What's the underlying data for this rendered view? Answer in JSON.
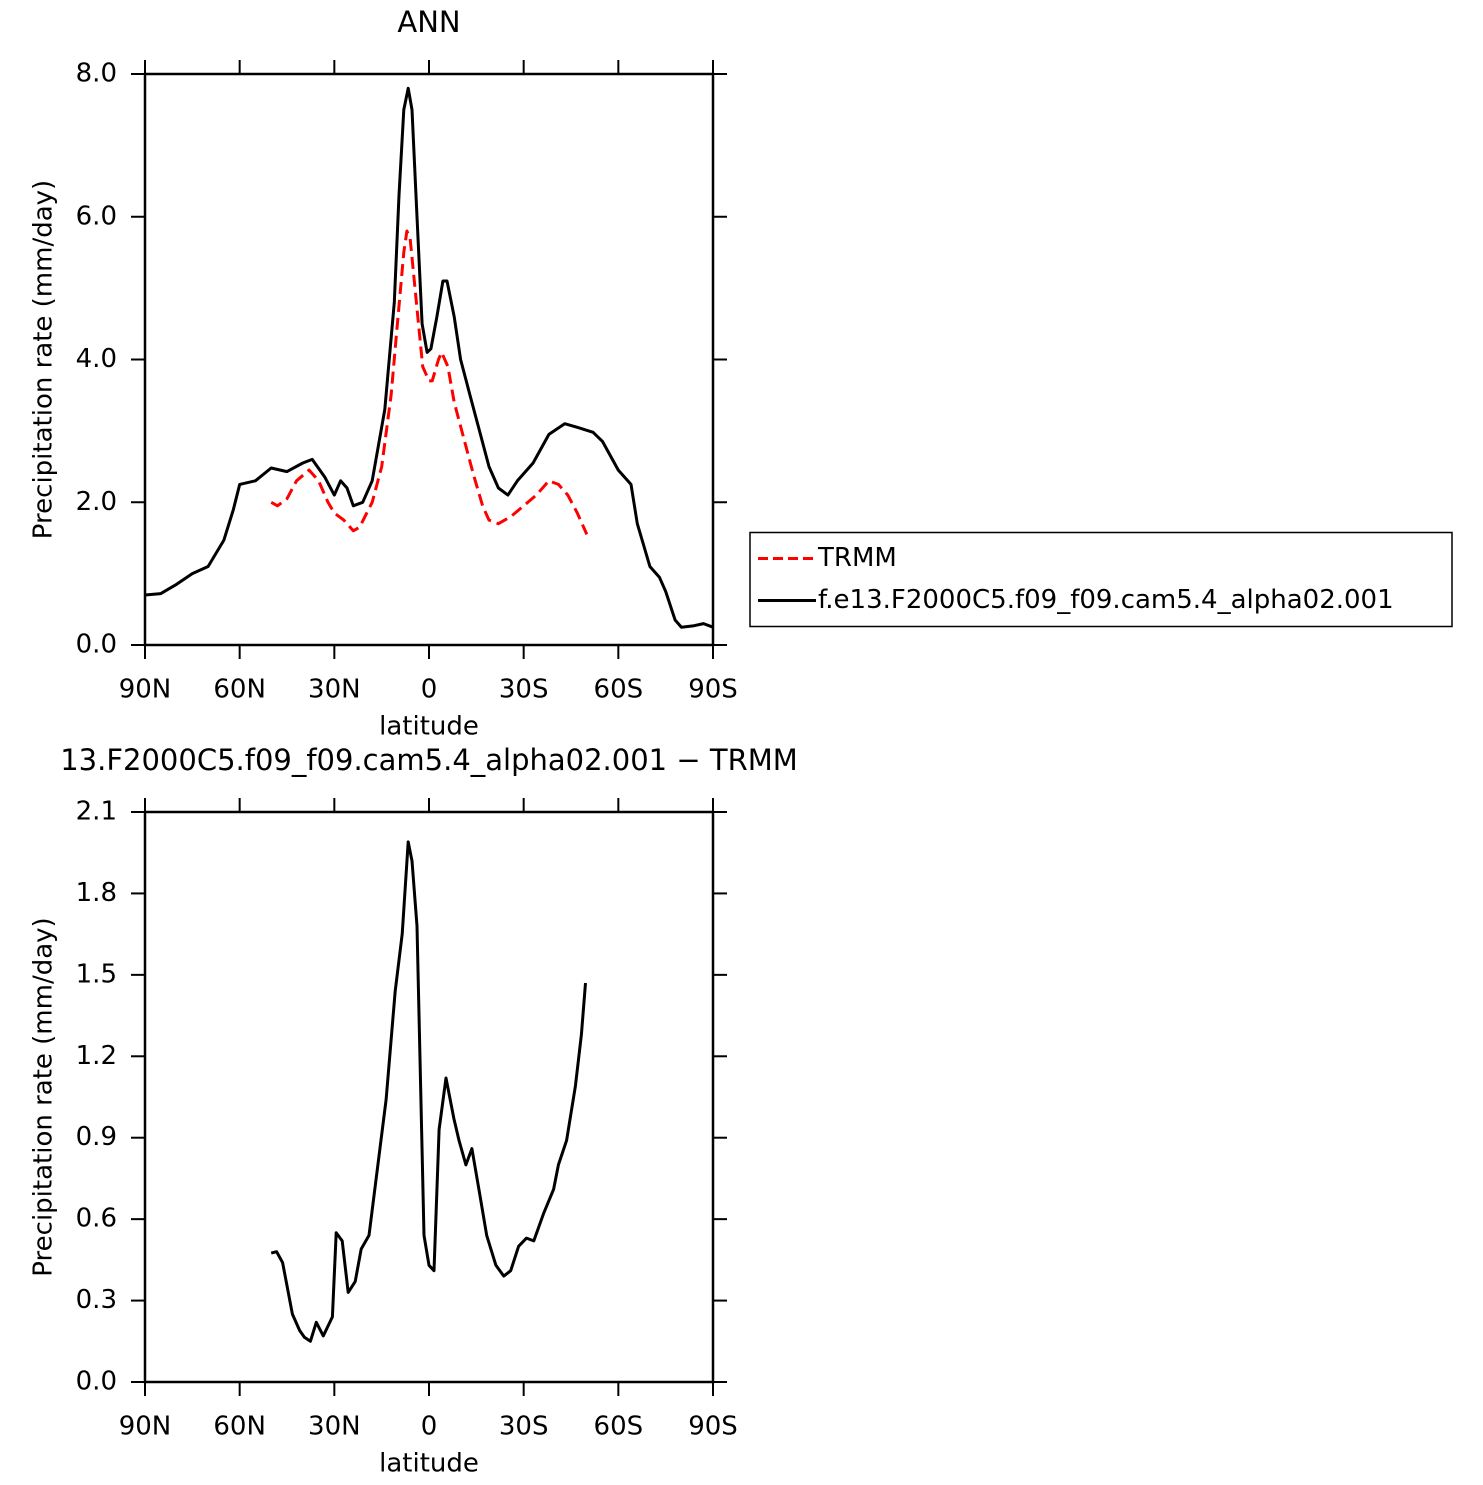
{
  "chart_data": [
    {
      "type": "line",
      "title": "ANN",
      "xlabel": "latitude",
      "ylabel": "Precipitation rate (mm/day)",
      "xlim": [
        90,
        -90
      ],
      "xticks": [
        {
          "value": 90,
          "label": "90N"
        },
        {
          "value": 60,
          "label": "60N"
        },
        {
          "value": 30,
          "label": "30N"
        },
        0,
        {
          "value": -30,
          "label": "30S"
        },
        {
          "value": -60,
          "label": "60S"
        },
        {
          "value": -90,
          "label": "90S"
        }
      ],
      "ylim": [
        0,
        8
      ],
      "yticks": [
        {
          "value": 0,
          "label": "0.0"
        },
        {
          "value": 2,
          "label": "2.0"
        },
        {
          "value": 4,
          "label": "4.0"
        },
        {
          "value": 6,
          "label": "6.0"
        },
        {
          "value": 8,
          "label": "8.0"
        }
      ],
      "legend": "right",
      "series": [
        {
          "name": "TRMM",
          "color": "#ff0000",
          "linestyle": "dashed",
          "x": [
            50,
            48,
            45,
            42,
            38,
            35,
            32,
            30,
            27,
            24,
            22,
            18,
            15,
            12,
            10,
            8,
            7,
            6,
            4,
            2,
            0,
            -1,
            -3,
            -4,
            -6,
            -8,
            -11,
            -14,
            -17,
            -19,
            -22,
            -26,
            -30,
            -34,
            -38,
            -41,
            -44,
            -47,
            -50
          ],
          "values": [
            2.0,
            1.95,
            2.05,
            2.3,
            2.45,
            2.3,
            2.0,
            1.85,
            1.75,
            1.6,
            1.65,
            2.0,
            2.5,
            3.5,
            4.5,
            5.5,
            5.8,
            5.7,
            4.8,
            3.9,
            3.7,
            3.7,
            4.0,
            4.1,
            3.9,
            3.4,
            2.9,
            2.4,
            1.95,
            1.75,
            1.7,
            1.8,
            1.95,
            2.1,
            2.3,
            2.25,
            2.1,
            1.85,
            1.55
          ]
        },
        {
          "name": "f.e13.F2000C5.f09_f09.cam5.4_alpha02.001",
          "color": "#000000",
          "linestyle": "solid",
          "x": [
            90,
            85,
            80,
            75,
            70,
            65,
            62,
            60,
            55,
            50,
            45,
            40,
            37,
            33,
            30,
            28,
            26,
            24,
            21,
            18,
            16,
            14,
            11,
            9.5,
            8,
            6.6,
            5.4,
            3.8,
            2.2,
            0.6,
            -0.6,
            -2.5,
            -4.4,
            -5.7,
            -8,
            -10,
            -13,
            -16,
            -19,
            -22,
            -25,
            -28,
            -33,
            -38,
            -43,
            -47,
            -52,
            -55,
            -60,
            -64,
            -66,
            -70,
            -73,
            -75,
            -78,
            -80,
            -84,
            -87,
            -90
          ],
          "values": [
            0.7,
            0.72,
            0.85,
            1.0,
            1.1,
            1.47,
            1.9,
            2.25,
            2.3,
            2.48,
            2.43,
            2.55,
            2.6,
            2.35,
            2.1,
            2.3,
            2.2,
            1.95,
            2.0,
            2.3,
            2.8,
            3.3,
            4.8,
            6.3,
            7.5,
            7.8,
            7.5,
            6.0,
            4.5,
            4.1,
            4.15,
            4.6,
            5.1,
            5.1,
            4.6,
            4.0,
            3.5,
            3.0,
            2.5,
            2.2,
            2.1,
            2.3,
            2.55,
            2.95,
            3.1,
            3.05,
            2.98,
            2.85,
            2.45,
            2.25,
            1.7,
            1.1,
            0.95,
            0.75,
            0.35,
            0.25,
            0.27,
            0.3,
            0.25
          ]
        }
      ]
    },
    {
      "type": "line",
      "title": "13.F2000C5.f09_f09.cam5.4_alpha02.001 − TRMM",
      "xlabel": "latitude",
      "ylabel": "Precipitation rate (mm/day)",
      "xlim": [
        90,
        -90
      ],
      "xticks": [
        {
          "value": 90,
          "label": "90N"
        },
        {
          "value": 60,
          "label": "60N"
        },
        {
          "value": 30,
          "label": "30N"
        },
        0,
        {
          "value": -30,
          "label": "30S"
        },
        {
          "value": -60,
          "label": "60S"
        },
        {
          "value": -90,
          "label": "90S"
        }
      ],
      "ylim": [
        0,
        2.1
      ],
      "yticks": [
        {
          "value": 0,
          "label": "0.0"
        },
        0.3,
        0.6,
        0.9,
        1.2,
        1.5,
        1.8,
        2.1
      ],
      "series": [
        {
          "color": "#000000",
          "linestyle": "solid",
          "x": [
            50,
            48.3,
            46.4,
            43.3,
            41,
            39.5,
            37.6,
            35.7,
            33.5,
            30.6,
            29.4,
            27.5,
            25.6,
            23.4,
            21.5,
            19,
            16.4,
            13.6,
            10.7,
            8.5,
            6.6,
            5.4,
            3.8,
            1.6,
            0,
            -1.6,
            -3.2,
            -5.4,
            -7.9,
            -9.5,
            -11.7,
            -13.6,
            -15.8,
            -18.3,
            -21.2,
            -23.7,
            -25.9,
            -28.4,
            -30.9,
            -33.2,
            -36.3,
            -39.5,
            -41,
            -43.6,
            -46.4,
            -48.3,
            -49.6
          ],
          "values": [
            0.475,
            0.48,
            0.44,
            0.25,
            0.19,
            0.165,
            0.15,
            0.22,
            0.17,
            0.24,
            0.55,
            0.52,
            0.33,
            0.37,
            0.49,
            0.54,
            0.78,
            1.04,
            1.44,
            1.65,
            1.99,
            1.92,
            1.68,
            0.54,
            0.43,
            0.41,
            0.93,
            1.12,
            0.97,
            0.89,
            0.8,
            0.86,
            0.71,
            0.54,
            0.43,
            0.39,
            0.41,
            0.5,
            0.53,
            0.52,
            0.62,
            0.71,
            0.8,
            0.89,
            1.09,
            1.28,
            1.47
          ]
        }
      ]
    }
  ]
}
